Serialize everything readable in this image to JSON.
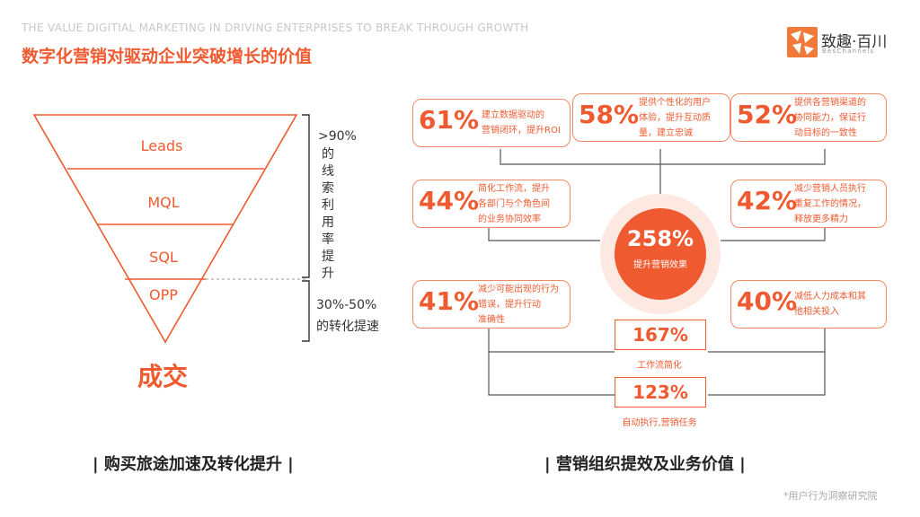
{
  "header": {
    "subtitle_en": "THE VALUE DIGITIAL MARKETING IN DRIVING ENTERPRISES TO BREAK THROUGH GROWTH",
    "title": "数字化营销对驱动企业突破增长的价值"
  },
  "logo": {
    "text": "致趣·百川",
    "sub": "BesChannels"
  },
  "funnel": {
    "stages": [
      "Leads",
      "MQL",
      "SQL",
      "OPP"
    ],
    "bracket1_head": ">90%",
    "bracket1_text": "的线索利用率提升",
    "bracket2_line1": "30%-50%",
    "bracket2_line2": "的转化提速",
    "result": "成交",
    "section_title": "| 购买旅途加速及转化提升 |"
  },
  "diagram": {
    "center": {
      "value": "258%",
      "label": "提升营销效果"
    },
    "boxes": [
      {
        "pct": "61%",
        "desc1": "建立数据驱动的",
        "desc2": "营销闭环，提升ROI"
      },
      {
        "pct": "58%",
        "desc1": "提供个性化的用户",
        "desc2": "体验，提升互动质",
        "desc3": "量，建立忠诚"
      },
      {
        "pct": "52%",
        "desc1": "提供各营销渠道的",
        "desc2": "协同能力，保证行",
        "desc3": "动目标的一致性"
      },
      {
        "pct": "44%",
        "desc1": "简化工作流，提升",
        "desc2": "各部门与个角色间",
        "desc3": "的业务协同效率"
      },
      {
        "pct": "42%",
        "desc1": "减少营销人员执行",
        "desc2": "重复工作的情况，",
        "desc3": "释放更多精力"
      },
      {
        "pct": "41%",
        "desc1": "减少可能出现的行为",
        "desc2": "错误，提升行动",
        "desc3": "准确性"
      },
      {
        "pct": "40%",
        "desc1": "减低人力成本和其",
        "desc2": "他相关投入"
      }
    ],
    "mid1": {
      "value": "167%",
      "label": "工作流简化"
    },
    "mid2": {
      "value": "123%",
      "label": "自动执行,营销任务"
    },
    "section_title": "| 营销组织提效及业务价值 |"
  },
  "footnote": "*用户行为洞察研究院",
  "colors": {
    "accent": "#ef5a30",
    "light": "#fde9e2"
  }
}
